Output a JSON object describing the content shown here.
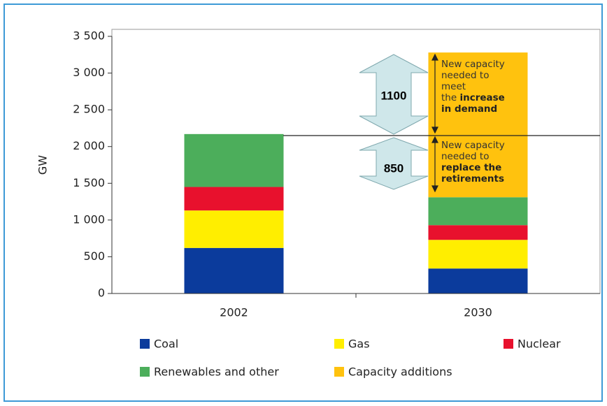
{
  "chart_data": {
    "type": "stacked_bar",
    "y_label": "GW",
    "categories": [
      "2002",
      "2030"
    ],
    "series": [
      {
        "name": "Coal",
        "color": "#0b3b9c",
        "values": [
          620,
          340
        ]
      },
      {
        "name": "Gas",
        "color": "#ffee00",
        "values": [
          510,
          390
        ]
      },
      {
        "name": "Nuclear",
        "color": "#e8112d",
        "values": [
          320,
          200
        ]
      },
      {
        "name": "Renewables and other",
        "color": "#4cae5b",
        "values": [
          720,
          380
        ]
      },
      {
        "name": "Capacity additions",
        "color": "#ffc20e",
        "values": [
          null,
          1970
        ]
      }
    ],
    "ylim": [
      0,
      3500
    ],
    "yticks": [
      0,
      500,
      {
        "value": 1000,
        "label": "1 000"
      },
      {
        "value": 1500,
        "label": "1 500"
      },
      {
        "value": 2000,
        "label": "2 000"
      },
      {
        "value": 2500,
        "label": "2 500"
      },
      {
        "value": 3000,
        "label": "3 000"
      },
      {
        "value": 3500,
        "label": "3 500"
      }
    ],
    "annotations": [
      {
        "label": "1100",
        "lines": [
          {
            "text": "New capacity"
          },
          {
            "text": "needed to"
          },
          {
            "text": "meet"
          },
          {
            "text": "the ",
            "bold": "increase"
          },
          {
            "bold": "in demand"
          }
        ]
      },
      {
        "label": "850",
        "lines": [
          {
            "text": "New capacity"
          },
          {
            "text": "needed to"
          },
          {
            "bold": "replace the"
          },
          {
            "bold": "retirements"
          }
        ]
      }
    ]
  }
}
